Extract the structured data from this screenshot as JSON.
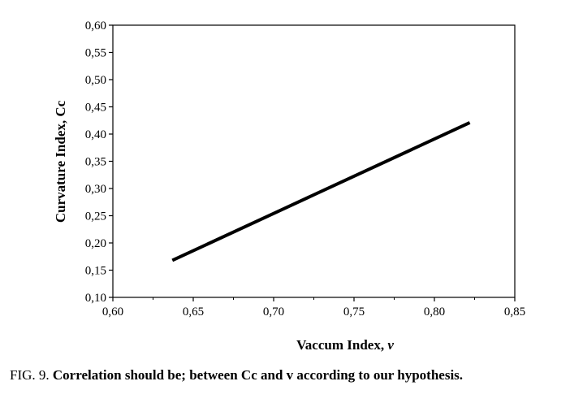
{
  "chart_data": {
    "type": "line",
    "xlabel": "Vaccum Index, ",
    "xlabel_symbol": "v",
    "ylabel": "Curvature Index, Cc",
    "xlim": [
      0.6,
      0.85
    ],
    "ylim": [
      0.1,
      0.6
    ],
    "x_ticks": [
      "0,60",
      "0,65",
      "0,70",
      "0,75",
      "0,80",
      "0,85"
    ],
    "y_ticks": [
      "0,10",
      "0,15",
      "0,20",
      "0,25",
      "0,30",
      "0,35",
      "0,40",
      "0,45",
      "0,50",
      "0,55",
      "0,60"
    ],
    "x_tick_values": [
      0.6,
      0.65,
      0.7,
      0.75,
      0.8,
      0.85
    ],
    "y_tick_values": [
      0.1,
      0.15,
      0.2,
      0.25,
      0.3,
      0.35,
      0.4,
      0.45,
      0.5,
      0.55,
      0.6
    ],
    "series": [
      {
        "x": [
          0.637,
          0.822
        ],
        "y": [
          0.168,
          0.421
        ],
        "color": "#000000"
      }
    ],
    "grid": false
  },
  "caption": {
    "label": "FIG. 9.",
    "text": "Correlation should be; between Cc and v according to our hypothesis."
  }
}
